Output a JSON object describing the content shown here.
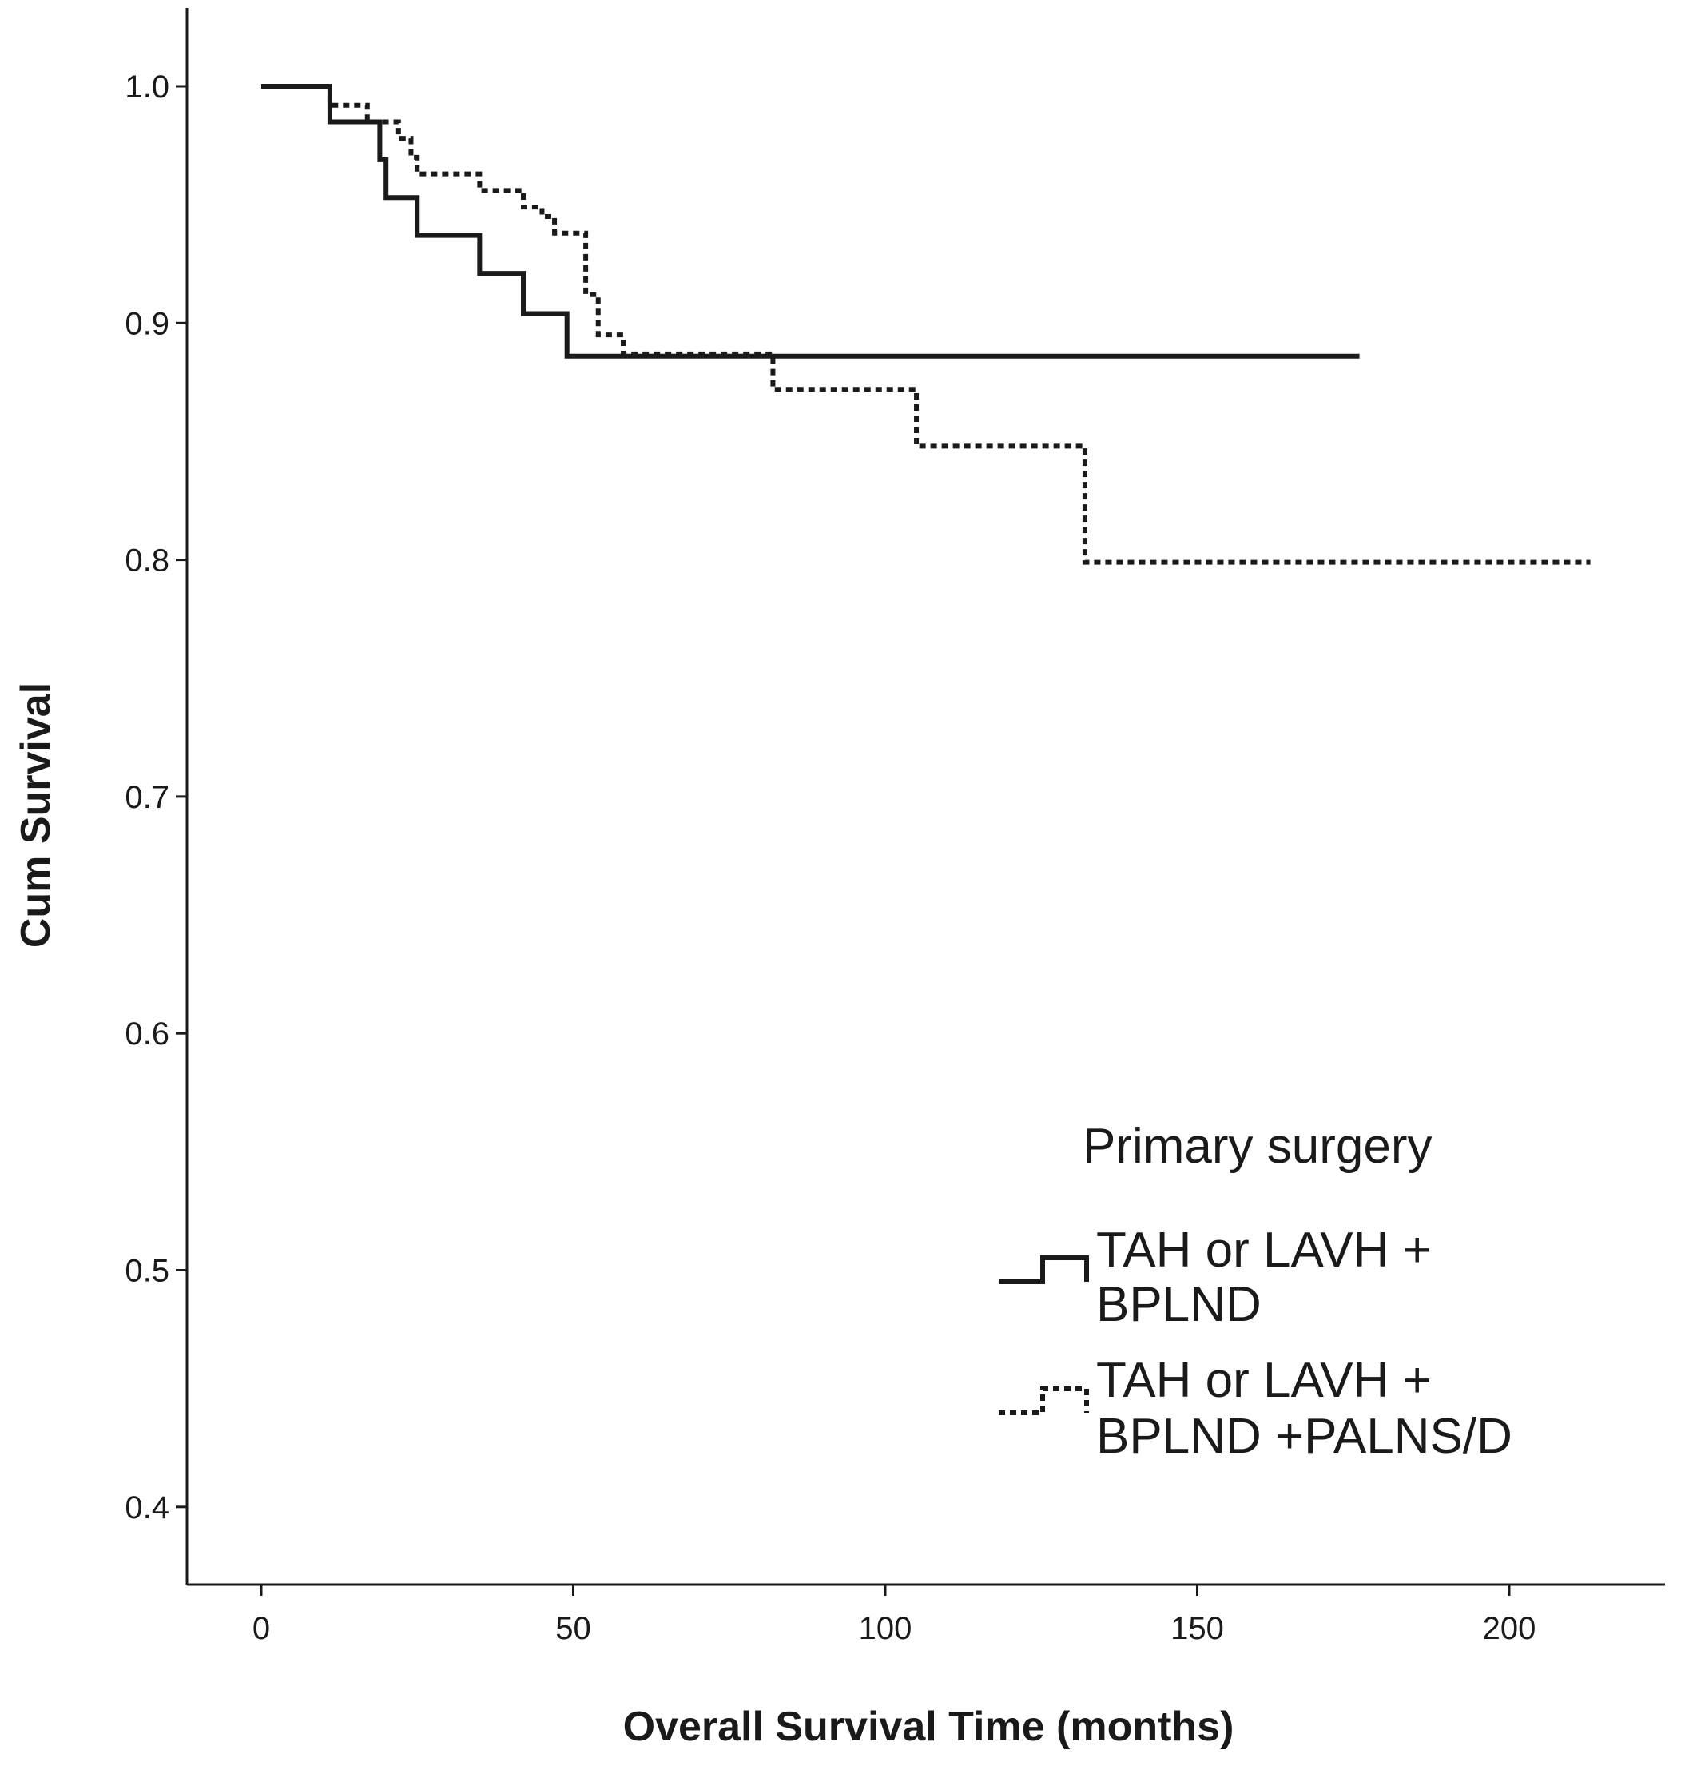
{
  "chart_data": {
    "type": "line",
    "title": "",
    "xlabel": "Overall Survival Time (months)",
    "ylabel": "Cum Survival",
    "xlim": [
      -12,
      225
    ],
    "ylim": [
      0.37,
      1.03
    ],
    "x_ticks": [
      0,
      50,
      100,
      150,
      200
    ],
    "y_ticks": [
      0.4,
      0.5,
      0.6,
      0.7,
      0.8,
      0.9,
      1.0
    ],
    "x_tick_labels": [
      "0",
      "50",
      "100",
      "150",
      "200"
    ],
    "y_tick_labels": [
      "0.4",
      "0.5",
      "0.6",
      "0.7",
      "0.8",
      "0.9",
      "1.0"
    ],
    "grid": false,
    "legend": {
      "title": "Primary surgery",
      "placement": "bottom-right"
    },
    "series": [
      {
        "name": "TAH or LAVH + BPLND",
        "name_lines": [
          "TAH or LAVH +",
          "BPLND"
        ],
        "style": "solid",
        "color": "#1a1a1a",
        "steps": [
          [
            0,
            1.0
          ],
          [
            11,
            0.985
          ],
          [
            19,
            0.969
          ],
          [
            20,
            0.953
          ],
          [
            25,
            0.937
          ],
          [
            35,
            0.921
          ],
          [
            42,
            0.904
          ],
          [
            49,
            0.886
          ],
          [
            176,
            0.886
          ]
        ]
      },
      {
        "name": "TAH or LAVH + BPLND +PALNS/D",
        "name_lines": [
          "TAH or LAVH +",
          "BPLND +PALNS/D"
        ],
        "style": "dotted",
        "color": "#1a1a1a",
        "steps": [
          [
            0,
            1.0
          ],
          [
            11,
            0.992
          ],
          [
            17,
            0.985
          ],
          [
            22,
            0.978
          ],
          [
            24,
            0.97
          ],
          [
            25,
            0.963
          ],
          [
            35,
            0.956
          ],
          [
            42,
            0.949
          ],
          [
            45,
            0.945
          ],
          [
            47,
            0.938
          ],
          [
            52,
            0.912
          ],
          [
            54,
            0.895
          ],
          [
            58,
            0.887
          ],
          [
            82,
            0.872
          ],
          [
            105,
            0.848
          ],
          [
            132,
            0.799
          ],
          [
            213,
            0.799
          ]
        ]
      }
    ]
  }
}
